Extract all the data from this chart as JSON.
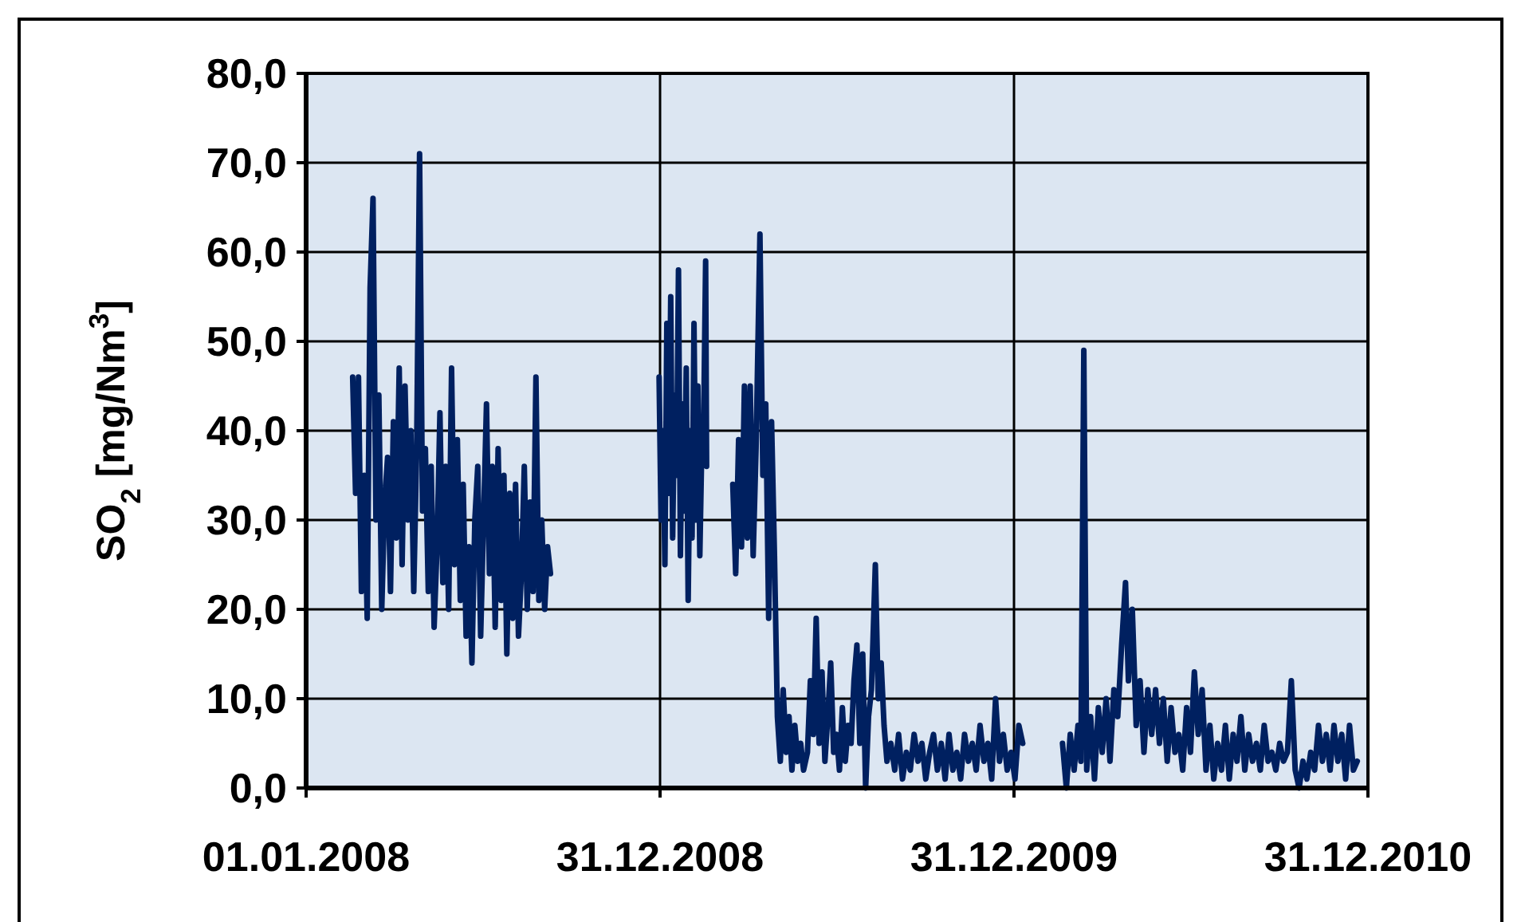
{
  "chart_data": {
    "type": "line",
    "ylabel": "SO$_{2}$ [mg/Nm$^{3}$]",
    "xlim": [
      "2008-01-01",
      "2010-12-31"
    ],
    "xticks": [
      {
        "value": "2008-01-01",
        "label": "01.01.2008"
      },
      {
        "value": "2008-12-31",
        "label": "31.12.2008"
      },
      {
        "value": "2009-12-31",
        "label": "31.12.2009"
      },
      {
        "value": "2010-12-31",
        "label": "31.12.2010"
      }
    ],
    "ylim": [
      0,
      80
    ],
    "yticks": [
      {
        "value": 0,
        "label": "0,0"
      },
      {
        "value": 10,
        "label": "10,0"
      },
      {
        "value": 20,
        "label": "20,0"
      },
      {
        "value": 30,
        "label": "30,0"
      },
      {
        "value": 40,
        "label": "40,0"
      },
      {
        "value": 50,
        "label": "50,0"
      },
      {
        "value": 60,
        "label": "60,0"
      },
      {
        "value": 70,
        "label": "70,0"
      },
      {
        "value": 80,
        "label": "80,0"
      }
    ],
    "grid": true,
    "marker": "none",
    "line_style": "solid",
    "series": [
      {
        "color": "#002060",
        "x": [
          "2008-02-18",
          "2008-02-21",
          "2008-02-24",
          "2008-02-27",
          "2008-03-01",
          "2008-03-04",
          "2008-03-07",
          "2008-03-10",
          "2008-03-13",
          "2008-03-16",
          "2008-03-19",
          "2008-03-22",
          "2008-03-25",
          "2008-03-28",
          "2008-03-31",
          "2008-04-03",
          "2008-04-06",
          "2008-04-09",
          "2008-04-12",
          "2008-04-15",
          "2008-04-18",
          "2008-04-21",
          "2008-04-24",
          "2008-04-27",
          "2008-04-30",
          "2008-05-03",
          "2008-05-06",
          "2008-05-09",
          "2008-05-12",
          "2008-05-15",
          "2008-05-18",
          "2008-05-21",
          "2008-05-24",
          "2008-05-27",
          "2008-05-30",
          "2008-06-02",
          "2008-06-05",
          "2008-06-08",
          "2008-06-11",
          "2008-06-14",
          "2008-06-17",
          "2008-06-20",
          "2008-06-23",
          "2008-06-26",
          "2008-06-29",
          "2008-07-02",
          "2008-07-05",
          "2008-07-08",
          "2008-07-11",
          "2008-07-14",
          "2008-07-17",
          "2008-07-20",
          "2008-07-23",
          "2008-07-26",
          "2008-07-29",
          "2008-08-01",
          "2008-08-04",
          "2008-08-07",
          "2008-08-10",
          "2008-08-13",
          "2008-08-16",
          "2008-08-19",
          "2008-08-22",
          "2008-08-25",
          "2008-08-28",
          "2008-08-31",
          "2008-09-03",
          "2008-09-06",
          "2008-09-09",
          "2008-09-20",
          "2008-12-30",
          "2009-01-01",
          "2009-01-03",
          "2009-01-05",
          "2009-01-07",
          "2009-01-09",
          "2009-01-11",
          "2009-01-13",
          "2009-01-15",
          "2009-01-17",
          "2009-01-19",
          "2009-01-21",
          "2009-01-23",
          "2009-01-25",
          "2009-01-27",
          "2009-01-29",
          "2009-01-31",
          "2009-02-02",
          "2009-02-04",
          "2009-02-06",
          "2009-02-08",
          "2009-02-10",
          "2009-02-12",
          "2009-02-14",
          "2009-02-16",
          "2009-02-17",
          "2009-02-20",
          "2009-03-16",
          "2009-03-19",
          "2009-03-22",
          "2009-03-25",
          "2009-03-28",
          "2009-03-31",
          "2009-04-03",
          "2009-04-06",
          "2009-04-09",
          "2009-04-13",
          "2009-04-16",
          "2009-04-19",
          "2009-04-22",
          "2009-04-25",
          "2009-04-28",
          "2009-05-01",
          "2009-05-04",
          "2009-05-07",
          "2009-05-10",
          "2009-05-13",
          "2009-05-16",
          "2009-05-19",
          "2009-05-22",
          "2009-05-25",
          "2009-05-28",
          "2009-06-01",
          "2009-06-04",
          "2009-06-07",
          "2009-06-10",
          "2009-06-13",
          "2009-06-16",
          "2009-06-19",
          "2009-06-22",
          "2009-06-25",
          "2009-06-28",
          "2009-07-01",
          "2009-07-04",
          "2009-07-07",
          "2009-07-10",
          "2009-07-13",
          "2009-07-16",
          "2009-07-19",
          "2009-07-22",
          "2009-07-25",
          "2009-07-28",
          "2009-07-31",
          "2009-08-03",
          "2009-08-06",
          "2009-08-10",
          "2009-08-13",
          "2009-08-16",
          "2009-08-19",
          "2009-08-22",
          "2009-08-26",
          "2009-08-30",
          "2009-09-03",
          "2009-09-07",
          "2009-09-11",
          "2009-09-15",
          "2009-09-19",
          "2009-09-23",
          "2009-09-27",
          "2009-10-01",
          "2009-10-05",
          "2009-10-09",
          "2009-10-13",
          "2009-10-17",
          "2009-10-21",
          "2009-10-25",
          "2009-10-29",
          "2009-11-02",
          "2009-11-06",
          "2009-11-10",
          "2009-11-14",
          "2009-11-18",
          "2009-11-22",
          "2009-11-26",
          "2009-11-30",
          "2009-12-04",
          "2009-12-08",
          "2009-12-12",
          "2009-12-16",
          "2009-12-20",
          "2009-12-24",
          "2009-12-28",
          "2010-01-01",
          "2010-01-05",
          "2010-01-09",
          "2010-01-20",
          "2010-02-19",
          "2010-02-23",
          "2010-02-27",
          "2010-03-03",
          "2010-03-07",
          "2010-03-10",
          "2010-03-13",
          "2010-03-16",
          "2010-03-20",
          "2010-03-24",
          "2010-03-28",
          "2010-04-01",
          "2010-04-05",
          "2010-04-09",
          "2010-04-13",
          "2010-04-17",
          "2010-04-21",
          "2010-04-25",
          "2010-04-28",
          "2010-05-02",
          "2010-05-06",
          "2010-05-10",
          "2010-05-14",
          "2010-05-18",
          "2010-05-22",
          "2010-05-26",
          "2010-05-30",
          "2010-06-03",
          "2010-06-07",
          "2010-06-11",
          "2010-06-15",
          "2010-06-19",
          "2010-06-23",
          "2010-06-27",
          "2010-07-01",
          "2010-07-05",
          "2010-07-09",
          "2010-07-13",
          "2010-07-17",
          "2010-07-21",
          "2010-07-25",
          "2010-07-29",
          "2010-08-02",
          "2010-08-06",
          "2010-08-10",
          "2010-08-14",
          "2010-08-18",
          "2010-08-22",
          "2010-08-26",
          "2010-08-30",
          "2010-09-03",
          "2010-09-07",
          "2010-09-11",
          "2010-09-15",
          "2010-09-19",
          "2010-09-23",
          "2010-09-27",
          "2010-10-01",
          "2010-10-05",
          "2010-10-09",
          "2010-10-13",
          "2010-10-17",
          "2010-10-21",
          "2010-10-25",
          "2010-10-29",
          "2010-11-02",
          "2010-11-06",
          "2010-11-10",
          "2010-11-14",
          "2010-11-18",
          "2010-11-22",
          "2010-11-26",
          "2010-11-30",
          "2010-12-04",
          "2010-12-08",
          "2010-12-12",
          "2010-12-16",
          "2010-12-20"
        ],
        "values": [
          46,
          33,
          46,
          22,
          35,
          19,
          56,
          66,
          30,
          44,
          20,
          32,
          37,
          22,
          41,
          28,
          47,
          25,
          45,
          30,
          40,
          22,
          38,
          71,
          31,
          38,
          22,
          36,
          18,
          27,
          42,
          23,
          36,
          20,
          47,
          25,
          39,
          21,
          34,
          17,
          27,
          14,
          30,
          36,
          17,
          30,
          43,
          24,
          36,
          18,
          38,
          21,
          35,
          15,
          33,
          19,
          34,
          17,
          24,
          36,
          20,
          32,
          22,
          46,
          21,
          30,
          20,
          27,
          24,
          null,
          46,
          30,
          40,
          25,
          52,
          33,
          55,
          28,
          44,
          35,
          58,
          26,
          43,
          31,
          47,
          21,
          40,
          28,
          52,
          30,
          45,
          26,
          38,
          41,
          59,
          36,
          null,
          34,
          24,
          39,
          27,
          45,
          28,
          45,
          26,
          38,
          62,
          35,
          43,
          19,
          41,
          26,
          8,
          3,
          11,
          4,
          8,
          2,
          7,
          3,
          5,
          2,
          4,
          12,
          6,
          19,
          5,
          13,
          3,
          8,
          14,
          4,
          6,
          2,
          9,
          3,
          7,
          5,
          12,
          16,
          5,
          15,
          0,
          8,
          11,
          25,
          10,
          14,
          7,
          3,
          5,
          2,
          6,
          1,
          4,
          2,
          6,
          3,
          5,
          1,
          4,
          6,
          2,
          5,
          1,
          6,
          2,
          4,
          1,
          6,
          3,
          5,
          2,
          7,
          3,
          5,
          1,
          10,
          3,
          6,
          2,
          4,
          1,
          7,
          5,
          null,
          5,
          0,
          6,
          2,
          7,
          3,
          49,
          2,
          8,
          1,
          9,
          4,
          10,
          3,
          11,
          8,
          16,
          23,
          12,
          20,
          7,
          12,
          4,
          11,
          6,
          11,
          5,
          10,
          3,
          9,
          4,
          6,
          2,
          9,
          4,
          13,
          6,
          11,
          2,
          7,
          1,
          5,
          2,
          7,
          1,
          6,
          3,
          8,
          2,
          6,
          3,
          5,
          2,
          7,
          3,
          4,
          2,
          5,
          3,
          4,
          12,
          2,
          0,
          3,
          1,
          4,
          2,
          7,
          3,
          6,
          2,
          7,
          3,
          6,
          1,
          7,
          2,
          3
        ]
      }
    ]
  }
}
